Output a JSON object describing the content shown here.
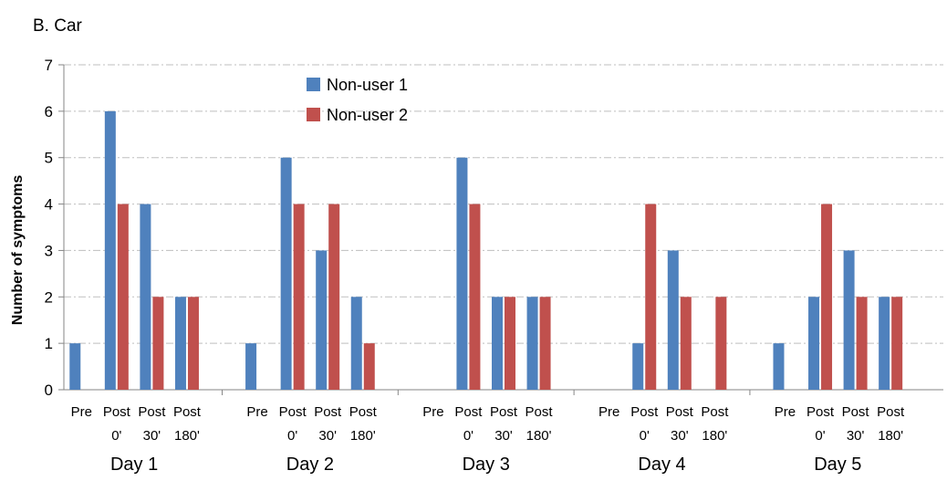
{
  "title": "B. Car",
  "chart_data": {
    "type": "bar",
    "title": "B. Car",
    "xlabel": "",
    "ylabel": "Number of symptoms",
    "ylim": [
      0,
      7
    ],
    "yticks": [
      "0",
      "1",
      "2",
      "3",
      "4",
      "5",
      "6",
      "7"
    ],
    "grid": true,
    "legend_position": "top-center",
    "groups": [
      "Day 1",
      "Day 2",
      "Day 3",
      "Day 4",
      "Day 5"
    ],
    "subcategories": [
      [
        "Pre",
        ""
      ],
      [
        "Post",
        "0'"
      ],
      [
        "Post",
        "30'"
      ],
      [
        "Post",
        "180'"
      ]
    ],
    "series": [
      {
        "name": "Non-user 1",
        "color": "#4F81BD",
        "values": [
          [
            1,
            6,
            4,
            2
          ],
          [
            1,
            5,
            3,
            2
          ],
          [
            0,
            5,
            2,
            2
          ],
          [
            0,
            1,
            3,
            0
          ],
          [
            1,
            2,
            3,
            2
          ]
        ]
      },
      {
        "name": "Non-user 2",
        "color": "#C0504D",
        "values": [
          [
            0,
            4,
            2,
            2
          ],
          [
            0,
            4,
            4,
            1
          ],
          [
            0,
            4,
            2,
            2
          ],
          [
            0,
            4,
            2,
            2
          ],
          [
            0,
            4,
            2,
            2
          ]
        ]
      }
    ]
  }
}
